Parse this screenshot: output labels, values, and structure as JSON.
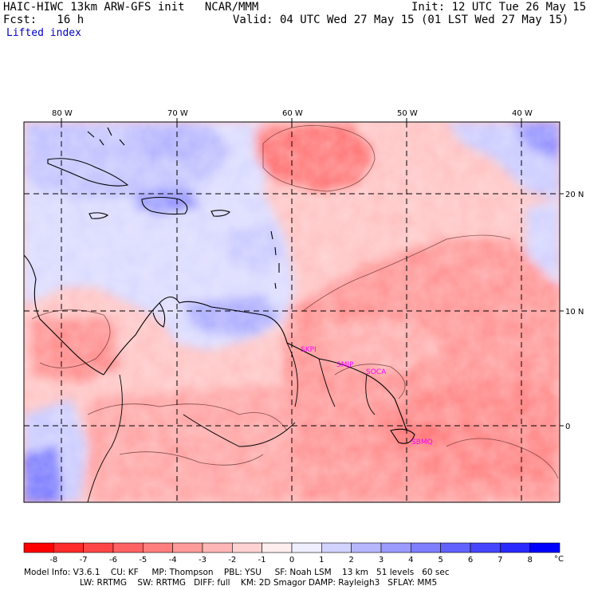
{
  "header": {
    "model_line": "HAIC-HIWC 13km ARW-GFS init   NCAR/MMM",
    "init_line": "Init: 12 UTC Tue 26 May 15",
    "fcst_line": "Fcst:   16 h",
    "valid_line": "Valid: 04 UTC Wed 27 May 15 (01 LST Wed 27 May 15)",
    "field_name": "Lifted index"
  },
  "map": {
    "lon_labels": [
      "80 W",
      "70 W",
      "60 W",
      "50 W",
      "40 W"
    ],
    "lat_labels": [
      "20 N",
      "10 N",
      "0"
    ],
    "stations": [
      "SKPI",
      "SMJP",
      "SOCA",
      "SBMQ"
    ]
  },
  "colorbar": {
    "ticks": [
      "-8",
      "-7",
      "-6",
      "-5",
      "-4",
      "-3",
      "-2",
      "-1",
      "0",
      "1",
      "2",
      "3",
      "4",
      "5",
      "6",
      "7",
      "8"
    ],
    "unit": "°C",
    "colors": [
      "#ff0000",
      "#ff2a2a",
      "#ff4646",
      "#ff6262",
      "#ff7e7e",
      "#ff9a9a",
      "#ffb6b6",
      "#ffd2d2",
      "#ffeeee",
      "#eeeeff",
      "#d2d2ff",
      "#b6b6ff",
      "#9a9aff",
      "#7e7eff",
      "#6262ff",
      "#4646ff",
      "#2a2aff",
      "#0000ff"
    ]
  },
  "footer": {
    "line1": "Model Info: V3.6.1    CU: KF     MP: Thompson    PBL: YSU     SF: Noah LSM    13 km   51 levels   60 sec",
    "line2": "LW: RRTMG    SW: RRTMG   DIFF: full    KM: 2D Smagor DAMP: Rayleigh3   SFLAY: MM5"
  }
}
